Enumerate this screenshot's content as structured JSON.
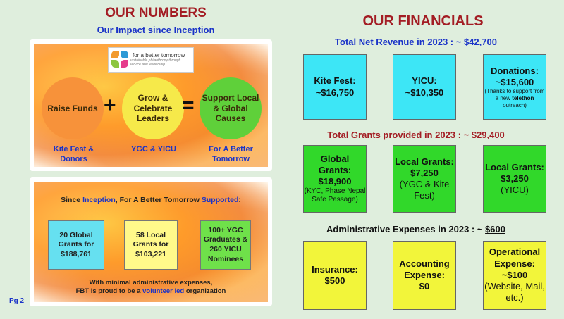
{
  "left": {
    "title": "OUR NUMBERS",
    "subtitle": "Our Impact since Inception",
    "logo": {
      "name": "for a better tomorrow",
      "tagline": "sustainable philanthropy through service and leadership"
    },
    "circles": [
      {
        "text": "Raise Funds",
        "color": "#f7923a"
      },
      {
        "text": "Grow & Celebrate Leaders",
        "color": "#f6e94a"
      },
      {
        "text": "Support Local & Global Causes",
        "color": "#5fd03a"
      }
    ],
    "operators": {
      "plus": "+",
      "equals": "="
    },
    "captions": [
      "Kite Fest & Donors",
      "YGC & YICU",
      "For A Better Tomorrow"
    ],
    "since": {
      "pre": "Since ",
      "hl1": "Inception",
      "mid": ", For A Better Tomorrow ",
      "hl2": "Supported",
      "post": ":"
    },
    "boxes": [
      "20 Global Grants for $188,761",
      "58 Local Grants for $103,221",
      "100+ YGC Graduates & 260 YICU Nominees"
    ],
    "footnote": {
      "line1": "With minimal administrative expenses,",
      "pre": "FBT is proud to be a ",
      "hl": "volunteer led",
      "post": " organization"
    },
    "page": "Pg 2"
  },
  "right": {
    "title": "OUR FINANCIALS",
    "revenue": {
      "heading": "Total Net Revenue in 2023 : ~ ",
      "amount": "$42,700",
      "cards": [
        {
          "label": "Kite Fest:",
          "value": "~$16,750"
        },
        {
          "label": "YICU:",
          "value": "~$10,350"
        },
        {
          "label": "Donations:",
          "value": "~$15,600",
          "note_pre": "(Thanks to support from a new ",
          "note_bold": "telethon",
          "note_post": " outreach)"
        }
      ]
    },
    "grants": {
      "heading": "Total Grants provided in 2023 : ~ ",
      "amount": "$29,400",
      "cards": [
        {
          "label": "Global Grants:",
          "value": "$18,900",
          "note": "(KYC, Phase Nepal Safe Passage)"
        },
        {
          "label": "Local Grants:",
          "value": "$7,250",
          "note": "(YGC & Kite Fest)"
        },
        {
          "label": "Local Grants:",
          "value": "$3,250",
          "note": "(YICU)"
        }
      ]
    },
    "admin": {
      "heading": "Administrative Expenses in 2023 : ~ ",
      "amount": "$600",
      "cards": [
        {
          "label": "Insurance:",
          "value": "$500"
        },
        {
          "label": "Accounting Expense:",
          "value": "$0"
        },
        {
          "label": "Operational Expense:",
          "value": "~$100",
          "note": "(Website, Mail, etc.)"
        }
      ]
    }
  }
}
